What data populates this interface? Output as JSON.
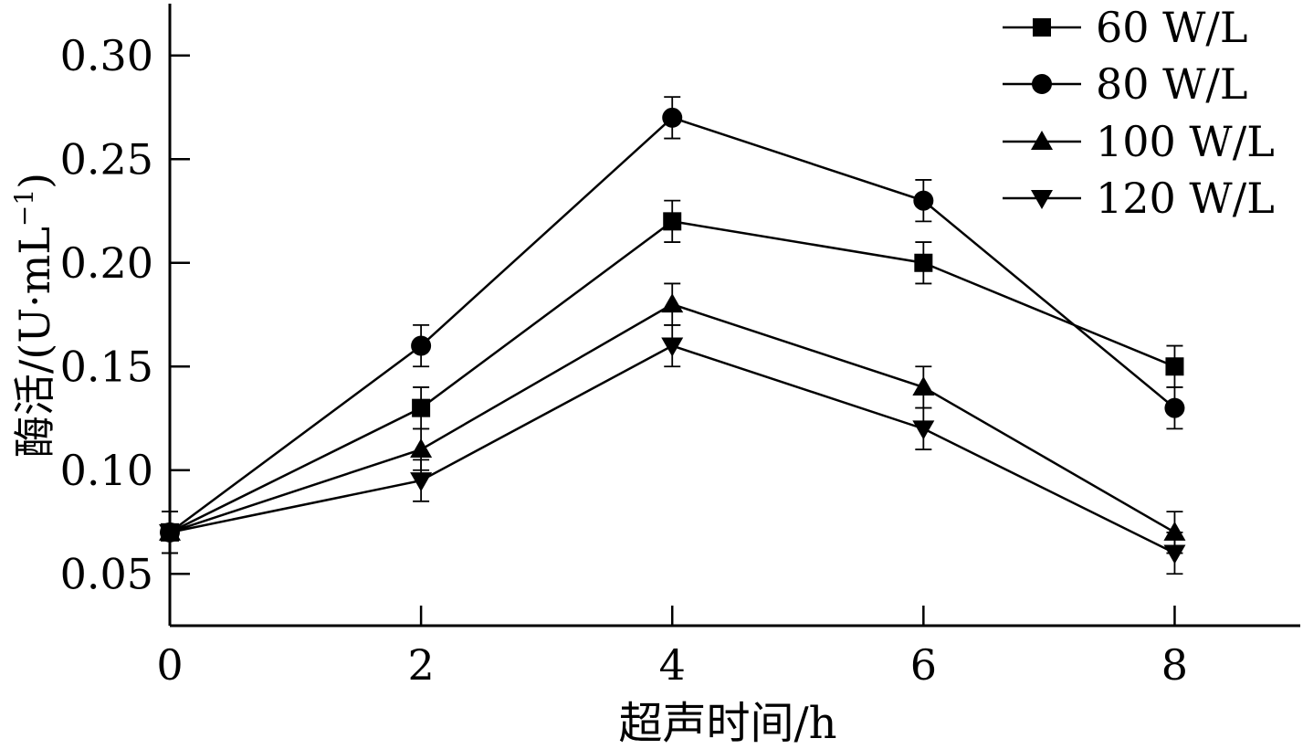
{
  "chart_data": {
    "type": "line",
    "title": "",
    "xlabel": "超声时间/h",
    "ylabel": "酶活/(U·mL",
    "ylabel_superscript": "−1",
    "ylabel_close": ")",
    "xlim": [
      0,
      9
    ],
    "ylim": [
      0.025,
      0.325
    ],
    "x_ticks": [
      0,
      2,
      4,
      6,
      8
    ],
    "x_tick_labels": [
      "0",
      "2",
      "4",
      "6",
      "8"
    ],
    "y_ticks": [
      0.05,
      0.1,
      0.15,
      0.2,
      0.25,
      0.3
    ],
    "y_tick_labels": [
      "0.05",
      "0.10",
      "0.15",
      "0.20",
      "0.25",
      "0.30"
    ],
    "grid": false,
    "legend_position": "top-right",
    "x": [
      0,
      2,
      4,
      6,
      8
    ],
    "series": [
      {
        "name": "60 W/L",
        "marker": "square",
        "values": [
          0.07,
          0.13,
          0.22,
          0.2,
          0.15
        ],
        "errors": [
          0.01,
          0.01,
          0.01,
          0.01,
          0.01
        ]
      },
      {
        "name": "80 W/L",
        "marker": "circle",
        "values": [
          0.07,
          0.16,
          0.27,
          0.23,
          0.13
        ],
        "errors": [
          0.01,
          0.01,
          0.01,
          0.01,
          0.01
        ]
      },
      {
        "name": "100 W/L",
        "marker": "triangle-up",
        "values": [
          0.07,
          0.11,
          0.18,
          0.14,
          0.07
        ],
        "errors": [
          0.01,
          0.01,
          0.01,
          0.01,
          0.01
        ]
      },
      {
        "name": "120 W/L",
        "marker": "triangle-down",
        "values": [
          0.07,
          0.095,
          0.16,
          0.12,
          0.06
        ],
        "errors": [
          0.01,
          0.01,
          0.01,
          0.01,
          0.01
        ]
      }
    ],
    "colors": {
      "line": "#000000",
      "marker": "#000000",
      "axis": "#000000"
    }
  }
}
